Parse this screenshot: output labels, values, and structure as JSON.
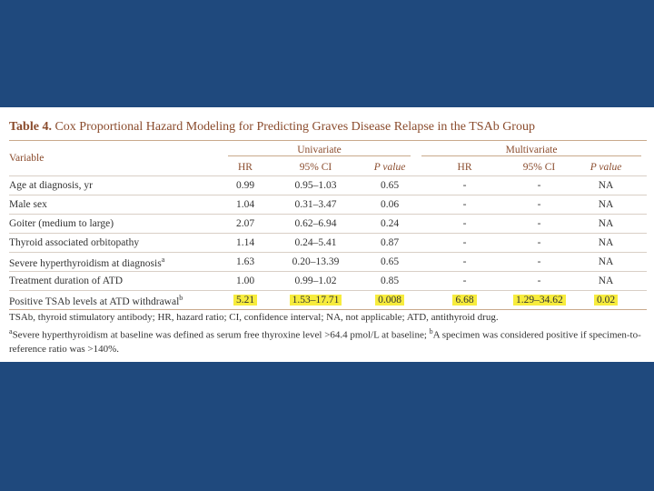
{
  "table": {
    "title_label": "Table 4.",
    "title": "Cox Proportional Hazard Modeling for Predicting Graves Disease Relapse in the TSAb Group",
    "variable_header": "Variable",
    "group_headers": [
      "Univariate",
      "Multivariate"
    ],
    "column_headers": [
      "HR",
      "95% CI",
      "P value",
      "HR",
      "95% CI",
      "P value"
    ],
    "rows": [
      {
        "label": "Age at diagnosis, yr",
        "cells": [
          "0.99",
          "0.95–1.03",
          "0.65",
          "-",
          "-",
          "NA"
        ]
      },
      {
        "label": "Male sex",
        "cells": [
          "1.04",
          "0.31–3.47",
          "0.06",
          "-",
          "-",
          "NA"
        ]
      },
      {
        "label": "Goiter (medium to large)",
        "cells": [
          "2.07",
          "0.62–6.94",
          "0.24",
          "-",
          "-",
          "NA"
        ]
      },
      {
        "label": "Thyroid associated orbitopathy",
        "cells": [
          "1.14",
          "0.24–5.41",
          "0.87",
          "-",
          "-",
          "NA"
        ]
      },
      {
        "label": "Severe hyperthyroidism at diagnosis",
        "mark": "a",
        "cells": [
          "1.63",
          "0.20–13.39",
          "0.65",
          "-",
          "-",
          "NA"
        ]
      },
      {
        "label": "Treatment duration of ATD",
        "cells": [
          "1.00",
          "0.99–1.02",
          "0.85",
          "-",
          "-",
          "NA"
        ]
      },
      {
        "label": "Positive TSAb levels at ATD withdrawal",
        "mark": "b",
        "highlighted": true,
        "cells": [
          "5.21",
          "1.53–17.71",
          "0.008",
          "6.68",
          "1.29–34.62",
          "0.02"
        ]
      }
    ],
    "footnotes": {
      "abbreviations": "TSAb, thyroid stimulatory antibody; HR, hazard ratio; CI, confidence interval; NA, not applicable; ATD, antithyroid drug.",
      "a_mark": "a",
      "a_text": "Severe hyperthyroidism at baseline was defined as serum free thyroxine level >64.4 pmol/L at baseline;",
      "b_mark": "b",
      "b_text": "A specimen was considered positive if specimen-to-reference ratio was >140%."
    }
  }
}
